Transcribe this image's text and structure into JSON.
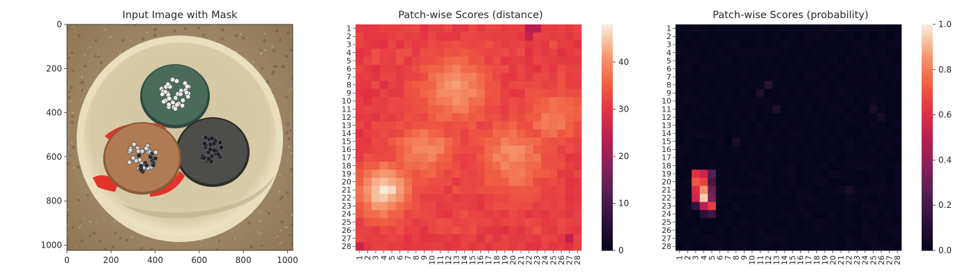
{
  "chart_data": [
    {
      "type": "image",
      "title": "Input Image with Mask",
      "xlim": [
        0,
        1024
      ],
      "ylim": [
        1024,
        0
      ],
      "xticks": [
        0,
        200,
        400,
        600,
        800,
        1000
      ],
      "yticks": [
        0,
        200,
        400,
        600,
        800,
        1000
      ],
      "colors": {
        "background": "#a48a68",
        "rim": "#dcd1ae",
        "green_cable": "#4a6b5a",
        "brown_cable": "#b07a52",
        "grey_cable": "#4d4d4a",
        "mask": "#e3322a"
      }
    },
    {
      "type": "heatmap",
      "title": "Patch-wise Scores (distance)",
      "rows": 28,
      "cols": 28,
      "row_labels": [
        "1",
        "2",
        "3",
        "4",
        "5",
        "6",
        "7",
        "8",
        "9",
        "10",
        "11",
        "12",
        "13",
        "14",
        "15",
        "16",
        "17",
        "18",
        "19",
        "20",
        "21",
        "22",
        "23",
        "24",
        "25",
        "26",
        "27",
        "28"
      ],
      "col_labels": [
        "1",
        "2",
        "3",
        "4",
        "5",
        "6",
        "7",
        "8",
        "9",
        "10",
        "11",
        "12",
        "13",
        "14",
        "15",
        "16",
        "17",
        "18",
        "19",
        "20",
        "21",
        "22",
        "23",
        "24",
        "25",
        "26",
        "27",
        "28"
      ],
      "colorbar": {
        "min": 0,
        "max": 48,
        "ticks": [
          "0",
          "10",
          "20",
          "30",
          "40"
        ],
        "tick_values": [
          0,
          10,
          20,
          30,
          40
        ]
      },
      "colormap": "rocket",
      "base_value": 31,
      "hotspots": [
        {
          "row": 21,
          "col": 4,
          "value": 47,
          "spread": 2.2
        },
        {
          "row": 8.5,
          "col": 13,
          "value": 41,
          "spread": 3.0
        },
        {
          "row": 16,
          "col": 9,
          "value": 40,
          "spread": 2.5
        },
        {
          "row": 17,
          "col": 20,
          "value": 40,
          "spread": 3.0
        },
        {
          "row": 12,
          "col": 25,
          "value": 38,
          "spread": 2.5
        }
      ],
      "low_cells": [
        {
          "row": 1,
          "col": 22,
          "value": 24
        },
        {
          "row": 1,
          "col": 23,
          "value": 24
        },
        {
          "row": 2,
          "col": 22,
          "value": 25
        },
        {
          "row": 28,
          "col": 1,
          "value": 26
        },
        {
          "row": 27,
          "col": 27,
          "value": 25
        }
      ]
    },
    {
      "type": "heatmap",
      "title": "Patch-wise Scores (probability)",
      "rows": 28,
      "cols": 28,
      "row_labels": [
        "1",
        "2",
        "3",
        "4",
        "5",
        "6",
        "7",
        "8",
        "9",
        "10",
        "11",
        "12",
        "13",
        "14",
        "15",
        "16",
        "17",
        "18",
        "19",
        "20",
        "21",
        "22",
        "23",
        "24",
        "25",
        "26",
        "27",
        "28"
      ],
      "col_labels": [
        "1",
        "2",
        "3",
        "4",
        "5",
        "6",
        "7",
        "8",
        "9",
        "10",
        "11",
        "12",
        "13",
        "14",
        "15",
        "16",
        "17",
        "18",
        "19",
        "20",
        "21",
        "22",
        "23",
        "24",
        "25",
        "26",
        "27",
        "28"
      ],
      "colorbar": {
        "min": 0,
        "max": 1.0,
        "ticks": [
          "0.0",
          "0.2",
          "0.4",
          "0.6",
          "0.8",
          "1.0"
        ],
        "tick_values": [
          0,
          0.2,
          0.4,
          0.6,
          0.8,
          1.0
        ]
      },
      "colormap": "rocket",
      "base_value": 0.02,
      "cells": [
        {
          "row": 19,
          "col": 3,
          "value": 0.62
        },
        {
          "row": 19,
          "col": 4,
          "value": 0.55
        },
        {
          "row": 19,
          "col": 5,
          "value": 0.25
        },
        {
          "row": 20,
          "col": 3,
          "value": 0.72
        },
        {
          "row": 20,
          "col": 4,
          "value": 0.66
        },
        {
          "row": 20,
          "col": 5,
          "value": 0.2
        },
        {
          "row": 21,
          "col": 3,
          "value": 0.6
        },
        {
          "row": 21,
          "col": 4,
          "value": 0.85
        },
        {
          "row": 21,
          "col": 5,
          "value": 0.3
        },
        {
          "row": 22,
          "col": 3,
          "value": 0.55
        },
        {
          "row": 22,
          "col": 4,
          "value": 0.95
        },
        {
          "row": 22,
          "col": 5,
          "value": 0.35
        },
        {
          "row": 23,
          "col": 3,
          "value": 0.15
        },
        {
          "row": 23,
          "col": 4,
          "value": 0.5
        },
        {
          "row": 23,
          "col": 5,
          "value": 0.65
        },
        {
          "row": 24,
          "col": 4,
          "value": 0.12
        },
        {
          "row": 24,
          "col": 5,
          "value": 0.18
        },
        {
          "row": 8,
          "col": 12,
          "value": 0.12
        },
        {
          "row": 9,
          "col": 11,
          "value": 0.08
        },
        {
          "row": 11,
          "col": 13,
          "value": 0.08
        },
        {
          "row": 11,
          "col": 25,
          "value": 0.07
        },
        {
          "row": 12,
          "col": 26,
          "value": 0.06
        },
        {
          "row": 15,
          "col": 8,
          "value": 0.07
        },
        {
          "row": 21,
          "col": 22,
          "value": 0.07
        }
      ]
    }
  ]
}
